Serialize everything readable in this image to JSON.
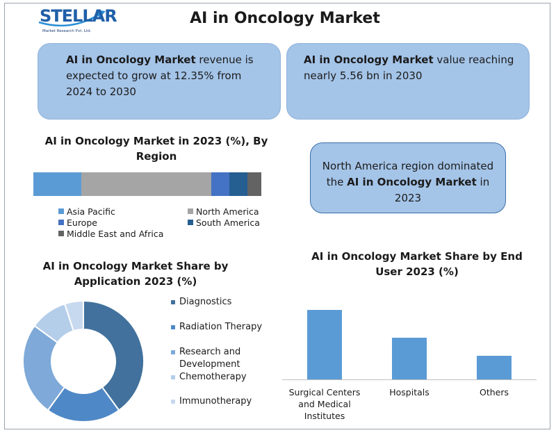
{
  "logo": {
    "word": "STELLAR",
    "sub": "Market Research Pvt. Ltd."
  },
  "title": "AI in Oncology Market",
  "callouts": {
    "growth": {
      "bold": "AI in Oncology Market",
      "pre": "",
      "post": " revenue is expected to grow at 12.35% from 2024 to 2030"
    },
    "value": {
      "bold": "AI in Oncology Market",
      "pre": "",
      "post": " value reaching nearly 5.56 bn in 2030"
    },
    "region": {
      "pre": "North America region dominated the ",
      "bold": "AI in Oncology Market",
      "post": " in 2023"
    }
  },
  "colors": {
    "callout_bg": "#a4c4e8",
    "asia_pacific": "#5b9bd5",
    "north_america": "#a5a5a5",
    "europe": "#4472c4",
    "south_america": "#255e91",
    "middle_east_africa": "#636363",
    "diagnostics": "#41719c",
    "radiation_therapy": "#4f88c6",
    "research_development": "#7ea9d8",
    "chemotherapy": "#b4cde9",
    "immunotherapy": "#c7d9ee",
    "enduser_bar": "#5b9bd5"
  },
  "chart_data": [
    {
      "type": "bar",
      "orientation": "horizontal-stacked-100",
      "title": "AI in Oncology Market in 2023 (%), By Region",
      "series": [
        {
          "name": "Asia Pacific",
          "values": [
            21
          ]
        },
        {
          "name": "North America",
          "values": [
            57
          ]
        },
        {
          "name": "Europe",
          "values": [
            8
          ]
        },
        {
          "name": "South America",
          "values": [
            8
          ]
        },
        {
          "name": "Middle East and Africa",
          "values": [
            6
          ]
        }
      ],
      "legend": "bottom"
    },
    {
      "type": "pie",
      "donut": true,
      "title": "AI in Oncology Market Share by Application 2023 (%)",
      "categories": [
        "Diagnostics",
        "Radiation Therapy",
        "Research and Development",
        "Chemotherapy",
        "Immunotherapy"
      ],
      "values": [
        40,
        20,
        25,
        10,
        5
      ],
      "legend": "right"
    },
    {
      "type": "bar",
      "title": "AI in Oncology Market Share by End User 2023 (%)",
      "categories": [
        "Surgical Centers and Medical Institutes",
        "Hospitals",
        "Others"
      ],
      "values": [
        50,
        30,
        17
      ],
      "ylim": [
        0,
        55
      ],
      "grid": false
    }
  ]
}
